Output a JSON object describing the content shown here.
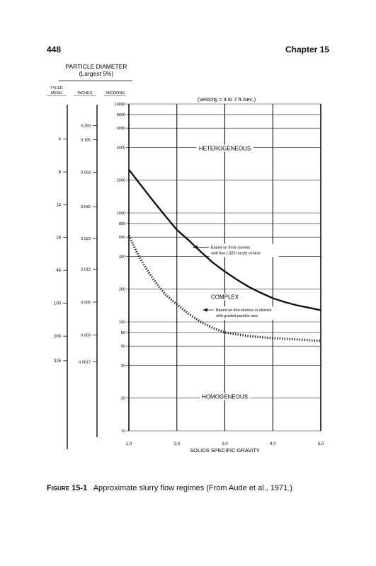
{
  "page": {
    "number": "448",
    "chapter": "Chapter 15"
  },
  "caption": {
    "figure_word": "Figure",
    "figure_number": "15-1",
    "text": "Approximate slurry flow regimes (From Aude et al., 1971.)"
  },
  "chart_data": {
    "type": "line",
    "title": "(Velocity = 4 to 7 ft./sec.)",
    "xlabel": "SOLIDS SPECIFIC GRAVITY",
    "ylabel": "MICRONS",
    "xlim": [
      1.0,
      5.0
    ],
    "ylim": [
      10,
      10000
    ],
    "y_scale": "log",
    "x_ticks": [
      1.0,
      2.0,
      3.0,
      4.0,
      5.0
    ],
    "x_tick_labels": [
      "1.0",
      "2.0",
      "3.0",
      "4.0",
      "5.0"
    ],
    "y_ticks": [
      10,
      20,
      40,
      60,
      80,
      100,
      200,
      400,
      600,
      800,
      1000,
      2000,
      4000,
      6000,
      8000,
      10000
    ],
    "y_tick_labels": [
      "10",
      "20",
      "40",
      "60",
      "80",
      "100",
      "200",
      "400",
      "600",
      "800",
      "1000",
      "2000",
      "4000",
      "6000",
      "8000",
      "10000"
    ],
    "grid": true,
    "particle_diameter": {
      "heading": "PARTICLE DIAMETER",
      "subheading": "(Largest 5%)",
      "tyler_mesh_header": [
        "TYLER",
        "MESH"
      ],
      "inches_header": "INCHES",
      "microns_header": "MICRONS",
      "tyler_mesh": [
        {
          "label": "4",
          "microns": 4760
        },
        {
          "label": "8",
          "microns": 2380
        },
        {
          "label": "14",
          "microns": 1190
        },
        {
          "label": "28",
          "microns": 595
        },
        {
          "label": "48",
          "microns": 297
        },
        {
          "label": "100",
          "microns": 149
        },
        {
          "label": "200",
          "microns": 74
        },
        {
          "label": "325",
          "microns": 44
        }
      ],
      "inches": [
        {
          "label": "0.250",
          "microns": 6350
        },
        {
          "label": "0.185",
          "microns": 4700
        },
        {
          "label": "0.093",
          "microns": 2362
        },
        {
          "label": "0.045",
          "microns": 1143
        },
        {
          "label": "0.023",
          "microns": 584
        },
        {
          "label": "0.012",
          "microns": 305
        },
        {
          "label": "0.006",
          "microns": 152
        },
        {
          "label": "0.003",
          "microns": 76
        },
        {
          "label": "0.0017",
          "microns": 43
        }
      ]
    },
    "regions": [
      {
        "label": "HETEROGENEOUS",
        "x": 3.0,
        "y": 3800
      },
      {
        "label": "COMPLEX",
        "x": 3.0,
        "y": 165
      },
      {
        "label": "HOMOGENEOUS",
        "x": 3.0,
        "y": 20
      }
    ],
    "series": [
      {
        "style": "solid",
        "x": [
          1.0,
          1.25,
          1.5,
          1.75,
          2.0,
          2.25,
          2.5,
          2.75,
          3.0,
          3.25,
          3.5,
          3.75,
          4.0,
          4.25,
          4.5,
          4.75,
          5.0
        ],
        "y": [
          2500,
          1800,
          1300,
          950,
          700,
          560,
          440,
          350,
          290,
          245,
          210,
          185,
          165,
          152,
          142,
          135,
          128
        ]
      },
      {
        "style": "dotted",
        "x": [
          1.0,
          1.15,
          1.3,
          1.5,
          1.75,
          2.0,
          2.25,
          2.5,
          2.75,
          3.0,
          3.5,
          4.0,
          4.5,
          5.0
        ],
        "y": [
          620,
          450,
          340,
          250,
          180,
          145,
          118,
          100,
          88,
          80,
          74,
          71,
          69,
          67
        ]
      }
    ],
    "annotations": [
      {
        "lines": [
          "Based on thick slurries",
          "with fine (-325 mesh) vehicle"
        ],
        "series_index": 0
      },
      {
        "lines": [
          "Based on thin slurries or slurries",
          "with graded particle size"
        ],
        "series_index": 1
      }
    ]
  }
}
